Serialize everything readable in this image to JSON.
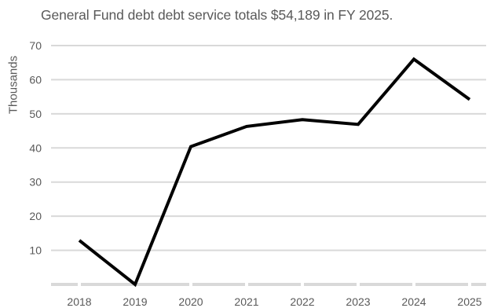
{
  "chart_data": {
    "type": "line",
    "title": "General Fund debt debt service totals $54,189 in FY 2025.",
    "xlabel": "",
    "ylabel": "Thousands",
    "categories": [
      "2018",
      "2019",
      "2020",
      "2021",
      "2022",
      "2023",
      "2024",
      "2025"
    ],
    "series": [
      {
        "values": [
          12.9,
          0,
          40.4,
          46.3,
          48.3,
          46.9,
          66.0,
          54.2
        ]
      }
    ],
    "ylim": [
      0,
      70
    ],
    "yticks": [
      10,
      20,
      30,
      40,
      50,
      60,
      70
    ],
    "grid": true,
    "line_color": "#000000",
    "grid_color": "#d9d9d9"
  }
}
